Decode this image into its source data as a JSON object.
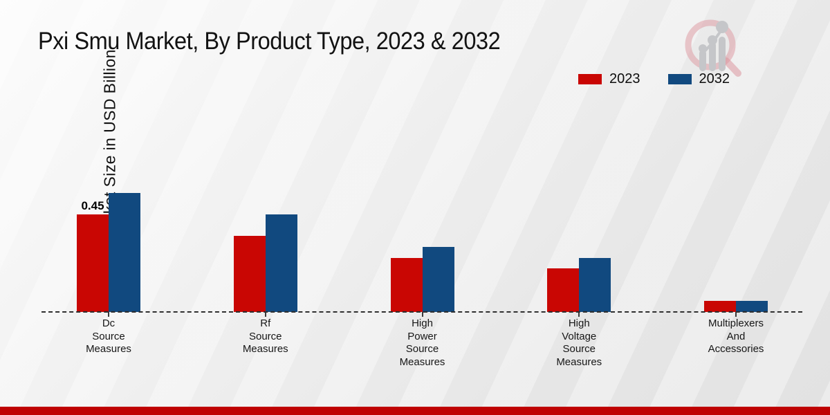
{
  "title": "Pxi Smu Market, By Product Type, 2023 & 2032",
  "y_axis_label": "Market Size in USD Billion",
  "legend": {
    "items": [
      {
        "label": "2023",
        "color": "#c90603"
      },
      {
        "label": "2032",
        "color": "#11497f"
      }
    ]
  },
  "colors": {
    "series_2023": "#c90603",
    "series_2032": "#11497f",
    "bottom_stripe": "#bf0202",
    "baseline": "#2f2f2f",
    "logo_ring": "#d98c96",
    "logo_bars": "#c2c3c6"
  },
  "chart_data": {
    "type": "bar",
    "title": "Pxi Smu Market, By Product Type, 2023 & 2032",
    "xlabel": "",
    "ylabel": "Market Size in USD Billion",
    "ylim": [
      0,
      0.6
    ],
    "grid": false,
    "legend_position": "top-right",
    "baseline_style": "dashed",
    "categories": [
      "Dc Source Measures",
      "Rf Source Measures",
      "High Power Source Measures",
      "High Voltage Source Measures",
      "Multiplexers And Accessories"
    ],
    "category_label_lines": [
      [
        "Dc",
        "Source",
        "Measures"
      ],
      [
        "Rf",
        "Source",
        "Measures"
      ],
      [
        "High",
        "Power",
        "Source",
        "Measures"
      ],
      [
        "High",
        "Voltage",
        "Source",
        "Measures"
      ],
      [
        "Multiplexers",
        "And",
        "Accessories"
      ]
    ],
    "series": [
      {
        "name": "2023",
        "color": "#c90603",
        "values": [
          0.45,
          0.35,
          0.25,
          0.2,
          0.05
        ]
      },
      {
        "name": "2032",
        "color": "#11497f",
        "values": [
          0.55,
          0.45,
          0.3,
          0.25,
          0.05
        ]
      }
    ],
    "data_labels": [
      {
        "category_index": 0,
        "series_index": 0,
        "text": "0.45"
      }
    ]
  }
}
